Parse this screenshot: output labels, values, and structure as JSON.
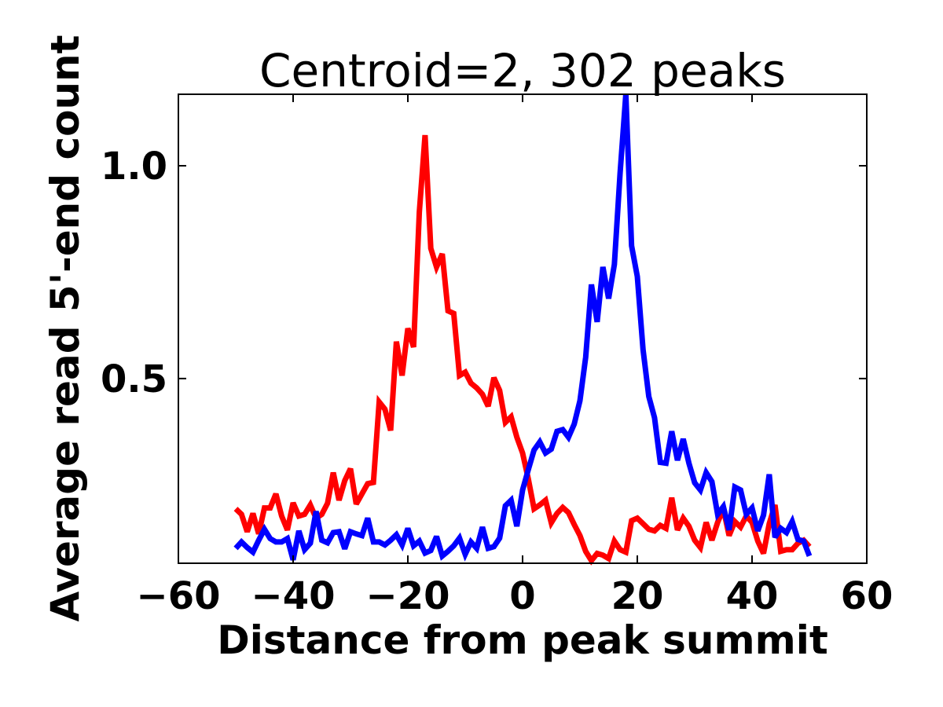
{
  "chart_data": {
    "type": "line",
    "title": "Centroid=2, 302 peaks",
    "xlabel": "Distance from peak summit",
    "ylabel": "Average read 5'-end count",
    "xlim": [
      -60,
      60
    ],
    "ylim": [
      0.066,
      1.168
    ],
    "xticks": [
      -60,
      -40,
      -20,
      0,
      20,
      40,
      60
    ],
    "xtick_labels": [
      "−60",
      "−40",
      "−20",
      "0",
      "20",
      "40",
      "60"
    ],
    "yticks": [
      0.5,
      1.0
    ],
    "ytick_labels": [
      "0.5",
      "1.0"
    ],
    "grid": false,
    "x_start": -50,
    "x_step": 1,
    "series": [
      {
        "name": "red",
        "color": "#ff0000",
        "values": [
          0.194,
          0.181,
          0.14,
          0.183,
          0.135,
          0.196,
          0.196,
          0.229,
          0.177,
          0.144,
          0.208,
          0.177,
          0.181,
          0.203,
          0.172,
          0.181,
          0.207,
          0.279,
          0.214,
          0.26,
          0.288,
          0.205,
          0.229,
          0.253,
          0.256,
          0.445,
          0.428,
          0.378,
          0.587,
          0.507,
          0.618,
          0.574,
          0.891,
          1.072,
          0.806,
          0.762,
          0.793,
          0.659,
          0.653,
          0.507,
          0.515,
          0.489,
          0.478,
          0.463,
          0.435,
          0.502,
          0.472,
          0.397,
          0.41,
          0.362,
          0.325,
          0.264,
          0.194,
          0.203,
          0.214,
          0.161,
          0.183,
          0.197,
          0.185,
          0.157,
          0.131,
          0.094,
          0.072,
          0.089,
          0.085,
          0.077,
          0.118,
          0.098,
          0.092,
          0.166,
          0.172,
          0.159,
          0.146,
          0.142,
          0.155,
          0.148,
          0.22,
          0.144,
          0.172,
          0.153,
          0.12,
          0.103,
          0.162,
          0.12,
          0.162,
          0.194,
          0.131,
          0.164,
          0.151,
          0.177,
          0.162,
          0.118,
          0.089,
          0.159,
          0.203,
          0.094,
          0.098,
          0.098,
          0.113,
          0.12,
          0.105
        ]
      },
      {
        "name": "blue",
        "color": "#0000ff",
        "values": [
          0.101,
          0.116,
          0.103,
          0.092,
          0.12,
          0.146,
          0.124,
          0.116,
          0.116,
          0.124,
          0.074,
          0.142,
          0.098,
          0.113,
          0.188,
          0.12,
          0.114,
          0.138,
          0.14,
          0.1,
          0.14,
          0.135,
          0.131,
          0.172,
          0.116,
          0.116,
          0.109,
          0.12,
          0.133,
          0.109,
          0.148,
          0.107,
          0.118,
          0.09,
          0.096,
          0.129,
          0.083,
          0.094,
          0.107,
          0.125,
          0.087,
          0.116,
          0.101,
          0.151,
          0.101,
          0.105,
          0.125,
          0.201,
          0.214,
          0.153,
          0.238,
          0.286,
          0.332,
          0.351,
          0.325,
          0.334,
          0.376,
          0.38,
          0.362,
          0.393,
          0.448,
          0.55,
          0.721,
          0.633,
          0.762,
          0.688,
          0.768,
          0.983,
          1.168,
          0.812,
          0.74,
          0.568,
          0.458,
          0.408,
          0.303,
          0.301,
          0.376,
          0.308,
          0.358,
          0.301,
          0.255,
          0.238,
          0.279,
          0.258,
          0.181,
          0.199,
          0.144,
          0.245,
          0.238,
          0.181,
          0.196,
          0.142,
          0.179,
          0.275,
          0.127,
          0.148,
          0.138,
          0.164,
          0.122,
          0.118,
          0.083
        ]
      }
    ]
  }
}
